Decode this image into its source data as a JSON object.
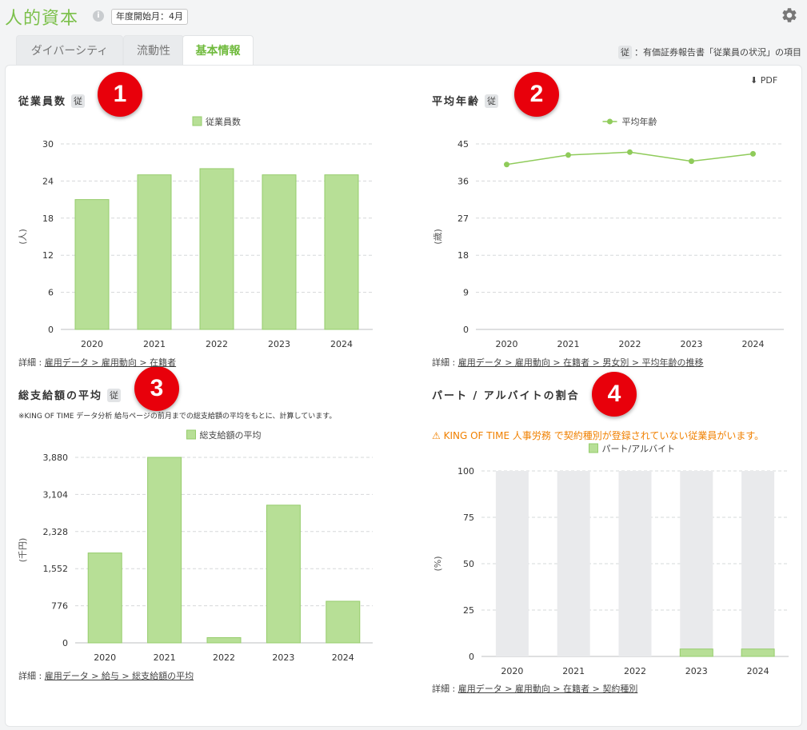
{
  "header": {
    "title": "人的資本",
    "fiscal_start": "年度開始月：4月"
  },
  "tabs": [
    {
      "label": "ダイバーシティ",
      "active": false
    },
    {
      "label": "流動性",
      "active": false
    },
    {
      "label": "基本情報",
      "active": true
    }
  ],
  "legend_note": {
    "badge": "従",
    "text": "：有価証券報告書「従業員の状況」の項目"
  },
  "pdf_label": "PDF",
  "ju_badge": "従",
  "charts": {
    "employees": {
      "title": "従業員数",
      "marker": "1",
      "detail_prefix": "詳細 : ",
      "detail_link": "雇用データ > 雇用動向 > 在籍者"
    },
    "avg_age": {
      "title": "平均年齢",
      "marker": "2",
      "detail_prefix": "詳細 : ",
      "detail_link": "雇用データ > 雇用動向 > 在籍者 > 男女別 > 平均年齢の推移"
    },
    "avg_pay": {
      "title": "総支給額の平均",
      "marker": "3",
      "note": "※KING OF TIME データ分析 給与ページの前月までの総支給額の平均をもとに、計算しています。",
      "detail_prefix": "詳細 : ",
      "detail_link": "雇用データ > 給与 > 総支給額の平均"
    },
    "parttime": {
      "title": "パート / アルバイトの割合",
      "marker": "4",
      "warning": "KING OF TIME 人事労務 で契約種別が登録されていない従業員がいます。",
      "detail_prefix": "詳細 : ",
      "detail_link": "雇用データ > 雇用動向 > 在籍者 > 契約種別"
    }
  },
  "colors": {
    "brand_green": "#7cc04b",
    "bar_fill": "#b7df96",
    "bar_stroke": "#96cc6c",
    "line": "#8fcb5a",
    "bg_bar": "#e9eaec",
    "marker_red": "#e8000b",
    "warn_orange": "#f08000"
  },
  "chart_data": [
    {
      "id": "employees",
      "type": "bar",
      "categories": [
        "2020",
        "2021",
        "2022",
        "2023",
        "2024"
      ],
      "series": [
        {
          "name": "従業員数",
          "values": [
            21,
            25,
            26,
            25,
            25
          ]
        }
      ],
      "ylabel": "(人)",
      "ylim": [
        0,
        30
      ],
      "yticks": [
        "0",
        "6",
        "12",
        "18",
        "24",
        "30"
      ],
      "grid": true,
      "legend": "top-center"
    },
    {
      "id": "avg_age",
      "type": "line",
      "categories": [
        "2020",
        "2021",
        "2022",
        "2023",
        "2024"
      ],
      "series": [
        {
          "name": "平均年齢",
          "values": [
            40,
            42.3,
            43,
            40.8,
            42.6
          ]
        }
      ],
      "ylabel": "(歳)",
      "ylim": [
        0,
        45
      ],
      "yticks": [
        "0",
        "9",
        "18",
        "27",
        "36",
        "45"
      ],
      "grid": true,
      "legend": "top-center"
    },
    {
      "id": "avg_pay",
      "type": "bar",
      "categories": [
        "2020",
        "2021",
        "2022",
        "2023",
        "2024"
      ],
      "series": [
        {
          "name": "総支給額の平均",
          "values": [
            1880,
            3880,
            110,
            2880,
            870
          ]
        }
      ],
      "ylabel": "(千円)",
      "ylim": [
        0,
        3880
      ],
      "yticks": [
        "0",
        "776",
        "1,552",
        "2,328",
        "3,104",
        "3,880"
      ],
      "grid": true,
      "legend": "top-center"
    },
    {
      "id": "parttime",
      "type": "bar",
      "categories": [
        "2020",
        "2021",
        "2022",
        "2023",
        "2024"
      ],
      "series": [
        {
          "name": "パート/アルバイト",
          "values": [
            0,
            0,
            0,
            4,
            4
          ]
        }
      ],
      "background_max": 100,
      "ylabel": "(%)",
      "ylim": [
        0,
        100
      ],
      "yticks": [
        "0",
        "25",
        "50",
        "75",
        "100"
      ],
      "grid": true,
      "legend": "top-center"
    }
  ]
}
